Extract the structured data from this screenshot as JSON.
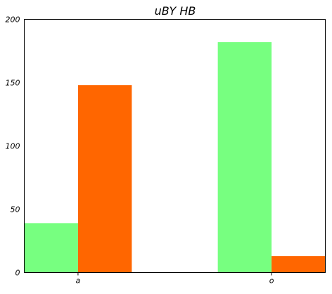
{
  "chart_data": {
    "type": "bar",
    "title": "uBY HB",
    "xlabel": "",
    "ylabel": "",
    "categories": [
      "a",
      "o"
    ],
    "series": [
      {
        "color": "#77ff80",
        "values": [
          39,
          182
        ]
      },
      {
        "color": "#ff6600",
        "values": [
          148,
          13
        ]
      }
    ],
    "ylim": [
      0,
      200
    ],
    "yticks": [
      "0",
      "50",
      "100",
      "150",
      "200"
    ],
    "grid": false,
    "legend": "none"
  }
}
